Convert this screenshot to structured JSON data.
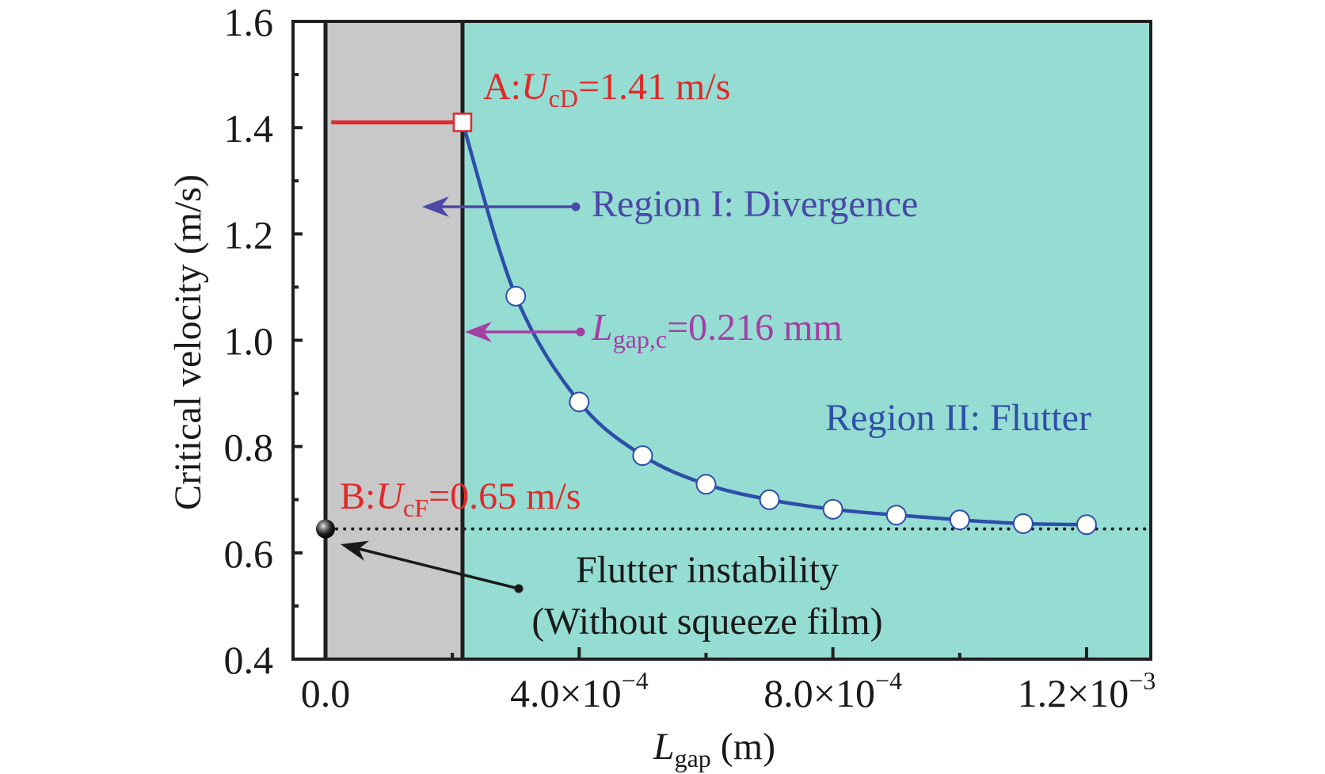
{
  "chart_data": {
    "type": "line",
    "title": "",
    "xlabel": {
      "main": "L",
      "sub": "gap",
      "unit": " (m)"
    },
    "ylabel": "Critical velocity (m/s)",
    "xlim": [
      -5e-05,
      0.0013
    ],
    "ylim": [
      0.4,
      1.6
    ],
    "x_ticks": [
      {
        "value": 0,
        "label": "0.0",
        "exp": ""
      },
      {
        "value": 0.0004,
        "label": "4.0×10",
        "exp": "−4"
      },
      {
        "value": 0.0008,
        "label": "8.0×10",
        "exp": "−4"
      },
      {
        "value": 0.0012,
        "label": "1.2×10",
        "exp": "−3"
      }
    ],
    "x_minor_ticks": [
      0.0002,
      0.0006,
      0.001
    ],
    "y_ticks": [
      {
        "value": 0.4,
        "label": "0.4"
      },
      {
        "value": 0.6,
        "label": "0.6"
      },
      {
        "value": 0.8,
        "label": "0.8"
      },
      {
        "value": 1.0,
        "label": "1.0"
      },
      {
        "value": 1.2,
        "label": "1.2"
      },
      {
        "value": 1.4,
        "label": "1.4"
      },
      {
        "value": 1.6,
        "label": "1.6"
      }
    ],
    "y_minor_ticks": [
      0.5,
      0.7,
      0.9,
      1.1,
      1.3,
      1.5
    ],
    "grid": false,
    "regions": [
      {
        "name": "no-film",
        "from": -5e-05,
        "to": 0,
        "color": "#ffffff"
      },
      {
        "name": "region-I-divergence",
        "from": 0,
        "to": 0.000216,
        "color": "#c8c8c8"
      },
      {
        "name": "region-II-flutter",
        "from": 0.000216,
        "to": 0.0013,
        "color": "#95dcd2"
      }
    ],
    "series": [
      {
        "name": "critical-velocity-fit",
        "color": "#2d4ea8",
        "x": [
          0.000216,
          0.0003,
          0.0004,
          0.0005,
          0.0006,
          0.0007,
          0.0008,
          0.0009,
          0.001,
          0.0011,
          0.0012
        ],
        "y": [
          1.41,
          1.083,
          0.884,
          0.783,
          0.729,
          0.7,
          0.682,
          0.671,
          0.662,
          0.655,
          0.653
        ]
      },
      {
        "name": "critical-velocity-points",
        "marker": "circle",
        "x": [
          0.0003,
          0.0004,
          0.0005,
          0.0006,
          0.0007,
          0.0008,
          0.0009,
          0.001,
          0.0011,
          0.0012
        ],
        "y": [
          1.083,
          0.884,
          0.783,
          0.729,
          0.7,
          0.682,
          0.671,
          0.662,
          0.655,
          0.653
        ]
      }
    ],
    "point_A": {
      "x": 0.000216,
      "y": 1.41,
      "color": "#e02a2a",
      "line_from_x": 9e-06
    },
    "point_B": {
      "x": 0,
      "y": 0.645
    },
    "flutter_asymptote_y": 0.645,
    "lgap_c_x": 0.000216,
    "annotations": {
      "A": {
        "prefix": "A:",
        "var": "U",
        "sub": "cD",
        "value": "=1.41 m/s",
        "color": "#e02a2a"
      },
      "B": {
        "prefix": "B:",
        "var": "U",
        "sub": "cF",
        "value": "=0.65 m/s",
        "color": "#e02a2a"
      },
      "region1": {
        "text": "Region I: Divergence",
        "color": "#4b48a8"
      },
      "lgapc": {
        "var": "L",
        "sub": "gap,c",
        "value": "=0.216 mm",
        "color": "#a43fa4"
      },
      "region2": {
        "text": "Region II: Flutter",
        "color": "#3050a8"
      },
      "flutter_line1": "Flutter instability",
      "flutter_line2": "(Without squeeze film)"
    }
  }
}
